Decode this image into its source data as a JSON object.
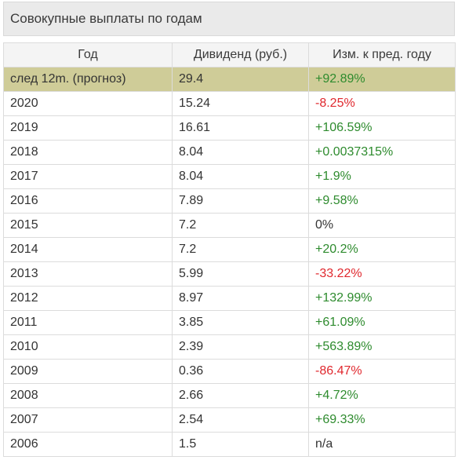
{
  "title": "Совокупные выплаты по годам",
  "headers": {
    "year": "Год",
    "dividend": "Дивиденд (руб.)",
    "change": "Изм. к пред. году"
  },
  "colors": {
    "positive": "#2e8b2e",
    "negative": "#e0282e",
    "forecast_row": "#cfcc98"
  },
  "rows": [
    {
      "year": "след 12m. (прогноз)",
      "dividend": "29.4",
      "change": "+92.89%",
      "trend": "pos",
      "forecast": true
    },
    {
      "year": "2020",
      "dividend": "15.24",
      "change": "-8.25%",
      "trend": "neg"
    },
    {
      "year": "2019",
      "dividend": "16.61",
      "change": "+106.59%",
      "trend": "pos"
    },
    {
      "year": "2018",
      "dividend": "8.04",
      "change": "+0.0037315%",
      "trend": "pos"
    },
    {
      "year": "2017",
      "dividend": "8.04",
      "change": "+1.9%",
      "trend": "pos"
    },
    {
      "year": "2016",
      "dividend": "7.89",
      "change": "+9.58%",
      "trend": "pos"
    },
    {
      "year": "2015",
      "dividend": "7.2",
      "change": "0%",
      "trend": "neu"
    },
    {
      "year": "2014",
      "dividend": "7.2",
      "change": "+20.2%",
      "trend": "pos"
    },
    {
      "year": "2013",
      "dividend": "5.99",
      "change": "-33.22%",
      "trend": "neg"
    },
    {
      "year": "2012",
      "dividend": "8.97",
      "change": "+132.99%",
      "trend": "pos"
    },
    {
      "year": "2011",
      "dividend": "3.85",
      "change": "+61.09%",
      "trend": "pos"
    },
    {
      "year": "2010",
      "dividend": "2.39",
      "change": "+563.89%",
      "trend": "pos"
    },
    {
      "year": "2009",
      "dividend": "0.36",
      "change": "-86.47%",
      "trend": "neg"
    },
    {
      "year": "2008",
      "dividend": "2.66",
      "change": "+4.72%",
      "trend": "pos"
    },
    {
      "year": "2007",
      "dividend": "2.54",
      "change": "+69.33%",
      "trend": "pos"
    },
    {
      "year": "2006",
      "dividend": "1.5",
      "change": "n/a",
      "trend": "neu"
    }
  ]
}
